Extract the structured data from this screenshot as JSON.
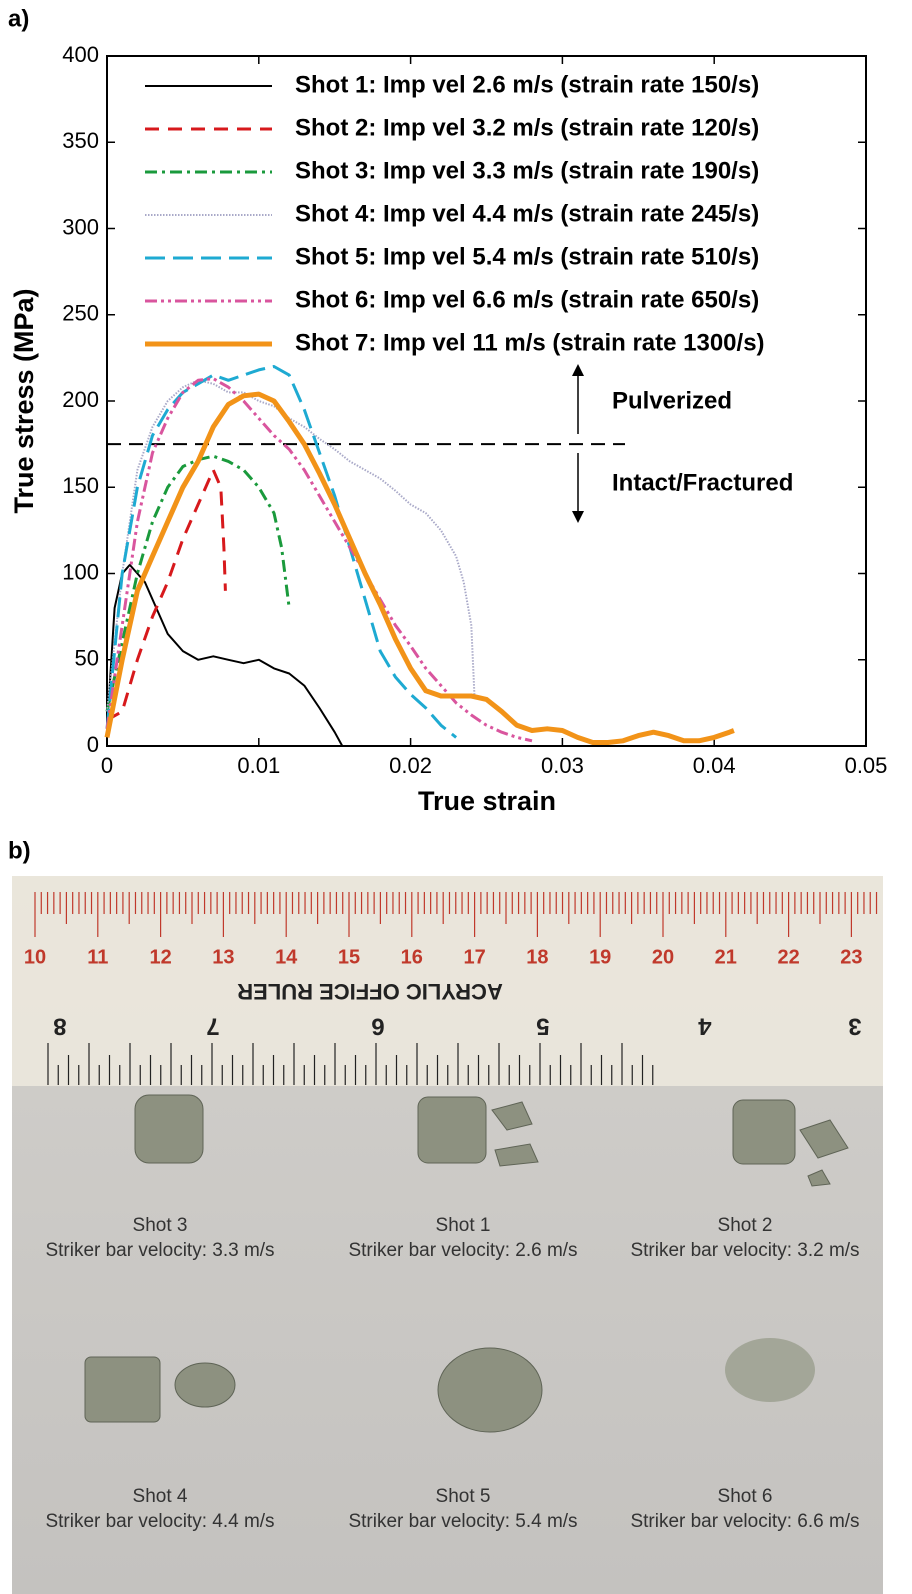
{
  "panel_labels": [
    "a)",
    "b)"
  ],
  "chart_data": {
    "type": "line",
    "x_label": "True strain",
    "y_label": "True stress (MPa)",
    "xlim": [
      0,
      0.05
    ],
    "ylim": [
      0,
      400
    ],
    "xticks": [
      0,
      0.01,
      0.02,
      0.03,
      0.04,
      0.05
    ],
    "yticks": [
      0,
      50,
      100,
      150,
      200,
      250,
      300,
      350,
      400
    ],
    "threshold": 175,
    "annotations": [
      "Pulverized",
      "Intact/Fractured"
    ],
    "series": [
      {
        "name": "Shot 1: Imp vel 2.6 m/s (strain rate 150/s)",
        "color": "#000000",
        "dash": "solid",
        "width": 2,
        "x": [
          0,
          0.0005,
          0.001,
          0.0015,
          0.002,
          0.0025,
          0.003,
          0.0035,
          0.004,
          0.005,
          0.006,
          0.007,
          0.008,
          0.009,
          0.01,
          0.011,
          0.012,
          0.013,
          0.014,
          0.015,
          0.0155
        ],
        "values": [
          10,
          80,
          100,
          105,
          100,
          95,
          85,
          75,
          65,
          55,
          50,
          52,
          50,
          48,
          50,
          45,
          42,
          35,
          22,
          8,
          0
        ]
      },
      {
        "name": "Shot 2: Imp vel 3.2 m/s (strain rate 120/s)",
        "color": "#d7191c",
        "dash": "dashed",
        "width": 3,
        "x": [
          0,
          0.001,
          0.002,
          0.003,
          0.004,
          0.005,
          0.006,
          0.007,
          0.0075,
          0.0077,
          0.0078
        ],
        "values": [
          15,
          20,
          50,
          75,
          95,
          120,
          140,
          160,
          150,
          115,
          90
        ]
      },
      {
        "name": "Shot 3: Imp vel 3.3 m/s (strain rate 190/s)",
        "color": "#1a9a3c",
        "dash": "dashdot",
        "width": 3,
        "x": [
          0,
          0.001,
          0.002,
          0.003,
          0.004,
          0.005,
          0.006,
          0.007,
          0.008,
          0.009,
          0.01,
          0.011,
          0.0115,
          0.012
        ],
        "values": [
          20,
          60,
          100,
          130,
          150,
          162,
          166,
          168,
          165,
          160,
          150,
          135,
          115,
          80
        ]
      },
      {
        "name": "Shot 4: Imp vel 4.4 m/s (strain rate 245/s)",
        "color": "#a9a9c8",
        "dash": "dotted",
        "width": 2,
        "x": [
          0,
          0.001,
          0.002,
          0.003,
          0.004,
          0.005,
          0.006,
          0.007,
          0.008,
          0.009,
          0.01,
          0.011,
          0.012,
          0.013,
          0.014,
          0.015,
          0.016,
          0.017,
          0.018,
          0.019,
          0.02,
          0.021,
          0.022,
          0.023,
          0.0235,
          0.024,
          0.0242
        ],
        "values": [
          20,
          100,
          160,
          185,
          200,
          208,
          212,
          210,
          205,
          205,
          200,
          197,
          190,
          185,
          178,
          172,
          165,
          160,
          155,
          148,
          140,
          135,
          125,
          110,
          95,
          70,
          30
        ]
      },
      {
        "name": "Shot 5: Imp vel 5.4 m/s (strain rate 510/s)",
        "color": "#1eaad2",
        "dash": "longdash",
        "width": 3,
        "x": [
          0,
          0.001,
          0.002,
          0.003,
          0.004,
          0.005,
          0.006,
          0.007,
          0.008,
          0.009,
          0.01,
          0.011,
          0.012,
          0.013,
          0.014,
          0.015,
          0.016,
          0.017,
          0.018,
          0.019,
          0.02,
          0.021,
          0.022,
          0.023
        ],
        "values": [
          10,
          100,
          150,
          180,
          195,
          205,
          210,
          215,
          212,
          215,
          218,
          220,
          215,
          195,
          170,
          145,
          115,
          85,
          55,
          40,
          30,
          22,
          12,
          5
        ]
      },
      {
        "name": "Shot 6: Imp vel 6.6 m/s (strain rate 650/s)",
        "color": "#d9559e",
        "dash": "dashdotdot",
        "width": 3,
        "x": [
          0,
          0.001,
          0.002,
          0.003,
          0.004,
          0.005,
          0.006,
          0.007,
          0.008,
          0.009,
          0.01,
          0.011,
          0.012,
          0.013,
          0.014,
          0.015,
          0.016,
          0.017,
          0.018,
          0.019,
          0.02,
          0.021,
          0.022,
          0.023,
          0.024,
          0.025,
          0.026,
          0.027,
          0.028
        ],
        "values": [
          10,
          70,
          130,
          170,
          190,
          205,
          212,
          213,
          208,
          200,
          190,
          180,
          172,
          160,
          145,
          130,
          115,
          100,
          85,
          70,
          58,
          45,
          35,
          25,
          18,
          12,
          8,
          5,
          3
        ]
      },
      {
        "name": "Shot 7: Imp vel 11 m/s (strain rate 1300/s)",
        "color": "#f29318",
        "dash": "solid",
        "width": 5,
        "x": [
          0,
          0.001,
          0.002,
          0.003,
          0.004,
          0.005,
          0.006,
          0.007,
          0.008,
          0.009,
          0.01,
          0.011,
          0.012,
          0.013,
          0.014,
          0.015,
          0.016,
          0.017,
          0.018,
          0.019,
          0.02,
          0.021,
          0.022,
          0.023,
          0.024,
          0.025,
          0.026,
          0.027,
          0.028,
          0.029,
          0.03,
          0.031,
          0.032,
          0.033,
          0.034,
          0.035,
          0.036,
          0.037,
          0.038,
          0.039,
          0.04,
          0.041,
          0.0413
        ],
        "values": [
          5,
          50,
          90,
          110,
          130,
          150,
          165,
          185,
          198,
          203,
          204,
          200,
          188,
          175,
          158,
          140,
          120,
          100,
          82,
          62,
          45,
          32,
          29,
          29,
          29,
          27,
          20,
          12,
          9,
          10,
          9,
          5,
          2,
          2,
          3,
          6,
          8,
          6,
          3,
          3,
          5,
          8,
          9
        ]
      }
    ]
  },
  "photo": {
    "ruler_text": "ACRYLIC OFFICE RULER",
    "cm_labels": [
      10,
      11,
      12,
      13,
      14,
      15,
      16,
      17,
      18,
      19,
      20,
      21,
      22,
      23
    ],
    "inch_labels": [
      8,
      7,
      6,
      5,
      4,
      3
    ],
    "captions": [
      {
        "shot": "Shot 3",
        "velocity": "Striker bar velocity: 3.3 m/s"
      },
      {
        "shot": "Shot 1",
        "velocity": "Striker bar velocity: 2.6 m/s"
      },
      {
        "shot": "Shot 2",
        "velocity": "Striker bar velocity: 3.2 m/s"
      },
      {
        "shot": "Shot 4",
        "velocity": "Striker bar velocity: 4.4 m/s"
      },
      {
        "shot": "Shot 5",
        "velocity": "Striker bar velocity: 5.4 m/s"
      },
      {
        "shot": "Shot 6",
        "velocity": "Striker bar velocity: 6.6 m/s"
      }
    ]
  }
}
